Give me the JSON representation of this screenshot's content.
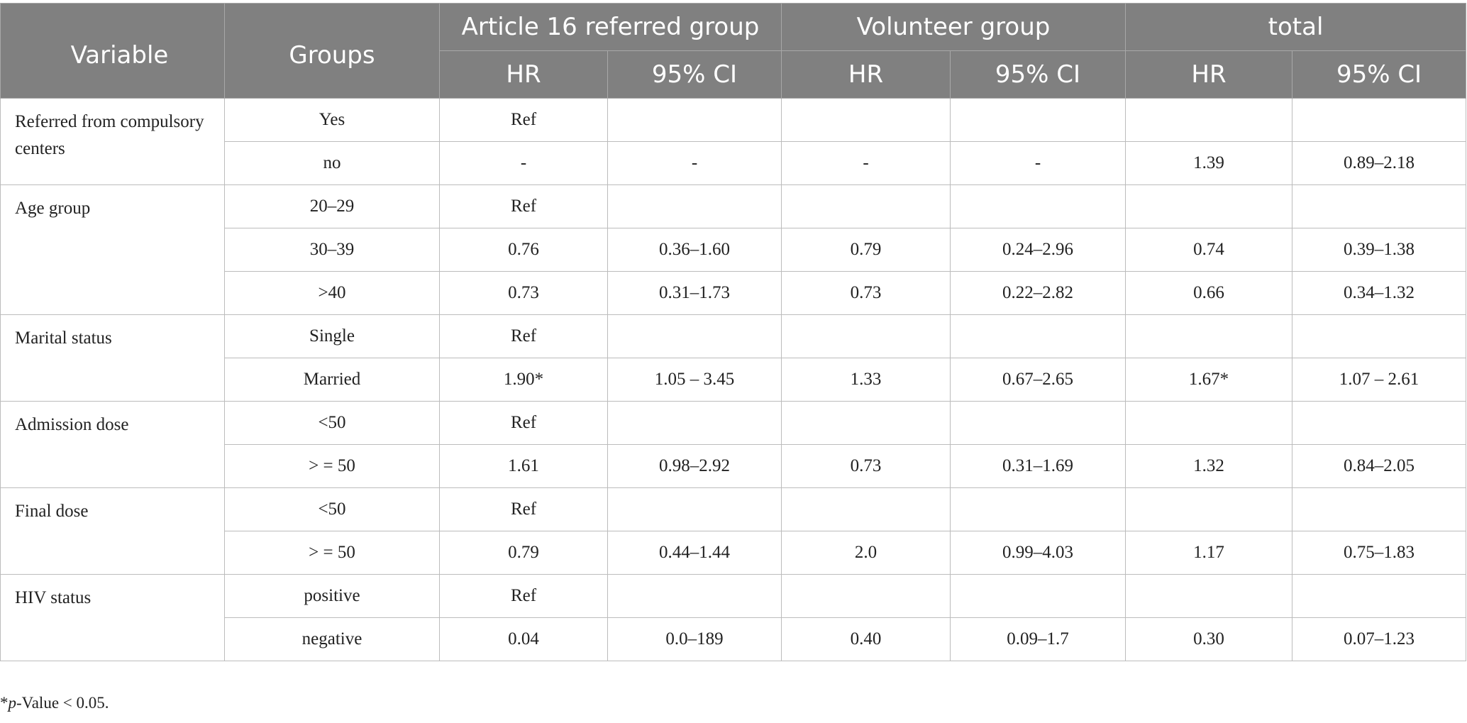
{
  "table": {
    "headers": {
      "variable": "Variable",
      "groups": "Groups",
      "group_a": "Article 16 referred group",
      "group_b": "Volunteer group",
      "group_total": "total",
      "hr": "HR",
      "ci": "95% CI"
    },
    "sections": [
      {
        "variable": "Referred from compulsory centers",
        "rows": [
          {
            "group": "Yes",
            "a_hr": "Ref",
            "a_ci": "",
            "b_hr": "",
            "b_ci": "",
            "t_hr": "",
            "t_ci": ""
          },
          {
            "group": "no",
            "a_hr": "-",
            "a_ci": "-",
            "b_hr": "-",
            "b_ci": "-",
            "t_hr": "1.39",
            "t_ci": "0.89–2.18"
          }
        ]
      },
      {
        "variable": "Age group",
        "rows": [
          {
            "group": "20–29",
            "a_hr": "Ref",
            "a_ci": "",
            "b_hr": "",
            "b_ci": "",
            "t_hr": "",
            "t_ci": ""
          },
          {
            "group": "30–39",
            "a_hr": "0.76",
            "a_ci": "0.36–1.60",
            "b_hr": "0.79",
            "b_ci": "0.24–2.96",
            "t_hr": "0.74",
            "t_ci": "0.39–1.38"
          },
          {
            "group": ">40",
            "a_hr": "0.73",
            "a_ci": "0.31–1.73",
            "b_hr": "0.73",
            "b_ci": "0.22–2.82",
            "t_hr": "0.66",
            "t_ci": "0.34–1.32"
          }
        ]
      },
      {
        "variable": "Marital status",
        "rows": [
          {
            "group": "Single",
            "a_hr": "Ref",
            "a_ci": "",
            "b_hr": "",
            "b_ci": "",
            "t_hr": "",
            "t_ci": ""
          },
          {
            "group": "Married",
            "a_hr": "1.90*",
            "a_ci": "1.05 – 3.45",
            "b_hr": "1.33",
            "b_ci": "0.67–2.65",
            "t_hr": "1.67*",
            "t_ci": "1.07 – 2.61"
          }
        ]
      },
      {
        "variable": "Admission dose",
        "rows": [
          {
            "group": "<50",
            "a_hr": "Ref",
            "a_ci": "",
            "b_hr": "",
            "b_ci": "",
            "t_hr": "",
            "t_ci": ""
          },
          {
            "group": "> = 50",
            "a_hr": "1.61",
            "a_ci": "0.98–2.92",
            "b_hr": "0.73",
            "b_ci": "0.31–1.69",
            "t_hr": "1.32",
            "t_ci": "0.84–2.05"
          }
        ]
      },
      {
        "variable": "Final dose",
        "rows": [
          {
            "group": "<50",
            "a_hr": "Ref",
            "a_ci": "",
            "b_hr": "",
            "b_ci": "",
            "t_hr": "",
            "t_ci": ""
          },
          {
            "group": "> = 50",
            "a_hr": "0.79",
            "a_ci": "0.44–1.44",
            "b_hr": "2.0",
            "b_ci": "0.99–4.03",
            "t_hr": "1.17",
            "t_ci": "0.75–1.83"
          }
        ]
      },
      {
        "variable": "HIV status",
        "rows": [
          {
            "group": "positive",
            "a_hr": "Ref",
            "a_ci": "",
            "b_hr": "",
            "b_ci": "",
            "t_hr": "",
            "t_ci": ""
          },
          {
            "group": "negative",
            "a_hr": "0.04",
            "a_ci": "0.0–189",
            "b_hr": "0.40",
            "b_ci": "0.09–1.7",
            "t_hr": "0.30",
            "t_ci": "0.07–1.23"
          }
        ]
      }
    ]
  },
  "footnote": {
    "star": "*",
    "p": "p",
    "rest": "-Value < 0.05."
  }
}
